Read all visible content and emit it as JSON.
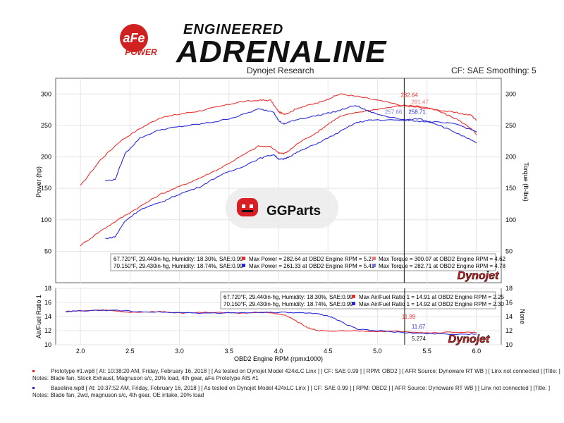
{
  "brand": {
    "afe_logo_text": "aFe",
    "afe_power_text": "POWER",
    "engineered": "ENGINEERED",
    "adrenaline": "ADRENALINE"
  },
  "header": {
    "left": "Dynojet Research",
    "right": "CF: SAE Smoothing: 5"
  },
  "watermark": {
    "text": "GGParts"
  },
  "colors": {
    "run1": "#e83030",
    "run2": "#2a2ad8",
    "run1_light": "#f07878",
    "run2_light": "#7878e8"
  },
  "chart_data": [
    {
      "type": "line",
      "xlabel": "",
      "ylabel": "Power (hp)",
      "y2label": "Torque (ft-lbs)",
      "xlim": [
        1.75,
        6.25
      ],
      "ylim": [
        0,
        325
      ],
      "y2lim": [
        0,
        325
      ],
      "yticks": [
        50,
        100,
        150,
        200,
        250,
        300
      ],
      "cursor_x": 5.27,
      "cursor_labels": {
        "power_red": "282.64",
        "torque_red": "281.47",
        "power_blue": "257.66",
        "torque_blue": "258.71"
      },
      "legend": [
        {
          "conditions": "67.720°F, 29.440in-hg, Humidity: 18.30%, SAE:0.99",
          "max1": "Max Power = 282.64 at OBD2 Engine RPM = 5.27",
          "max2": "Max Torque = 300.07 at OBD2 Engine RPM = 4.62"
        },
        {
          "conditions": "70.150°F, 29.430in-hg, Humidity: 18.74%, SAE:0.99",
          "max1": "Max Power = 261.33 at OBD2 Engine RPM = 5.42",
          "max2": "Max Torque = 282.71 at OBD2 Engine RPM = 4.78"
        }
      ],
      "series": [
        {
          "axis": "y2",
          "run": 1,
          "x": [
            2.0,
            2.2,
            2.4,
            2.6,
            2.8,
            3.0,
            3.2,
            3.4,
            3.6,
            3.8,
            3.92,
            4.0,
            4.05,
            4.1,
            4.2,
            4.4,
            4.5,
            4.62,
            4.8,
            5.0,
            5.27,
            5.4,
            5.6,
            5.8,
            5.95,
            6.0
          ],
          "values": [
            154,
            195,
            225,
            245,
            262,
            268,
            273,
            280,
            287,
            290,
            290,
            272,
            268,
            270,
            278,
            286,
            292,
            300,
            296,
            290,
            281,
            279,
            275,
            270,
            266,
            258
          ]
        },
        {
          "axis": "y",
          "run": 1,
          "x": [
            2.0,
            2.2,
            2.4,
            2.6,
            2.8,
            3.0,
            3.2,
            3.4,
            3.6,
            3.8,
            3.92,
            4.0,
            4.05,
            4.1,
            4.2,
            4.4,
            4.5,
            4.62,
            4.8,
            5.0,
            5.27,
            5.4,
            5.6,
            5.8,
            5.95,
            6.0
          ],
          "values": [
            59,
            82,
            102,
            121,
            140,
            153,
            166,
            181,
            199,
            217,
            216,
            207,
            205,
            209,
            222,
            240,
            252,
            264,
            271,
            276,
            282,
            281,
            274,
            260,
            245,
            235
          ]
        },
        {
          "axis": "y2",
          "run": 2,
          "x": [
            2.25,
            2.35,
            2.45,
            2.6,
            2.8,
            3.0,
            3.2,
            3.4,
            3.6,
            3.8,
            3.95,
            4.0,
            4.05,
            4.1,
            4.2,
            4.4,
            4.6,
            4.78,
            4.9,
            5.0,
            5.27,
            5.4,
            5.6,
            5.8,
            6.0
          ],
          "values": [
            162,
            164,
            205,
            230,
            243,
            248,
            252,
            257,
            265,
            276,
            272,
            258,
            252,
            255,
            260,
            266,
            273,
            282,
            273,
            268,
            259,
            257,
            255,
            252,
            240
          ]
        },
        {
          "axis": "y",
          "run": 2,
          "x": [
            2.25,
            2.35,
            2.45,
            2.6,
            2.8,
            3.0,
            3.2,
            3.4,
            3.6,
            3.8,
            3.95,
            4.0,
            4.05,
            4.1,
            4.2,
            4.4,
            4.6,
            4.78,
            4.9,
            5.0,
            5.27,
            5.42,
            5.6,
            5.8,
            6.0
          ],
          "values": [
            70,
            73,
            98,
            116,
            127,
            141,
            152,
            170,
            182,
            197,
            204,
            197,
            196,
            200,
            208,
            222,
            238,
            254,
            258,
            259,
            258,
            261,
            252,
            238,
            222
          ]
        }
      ]
    },
    {
      "type": "line",
      "xlabel": "OBD2 Engine RPM (rpmx1000)",
      "ylabel": "Air/Fuel Ratio 1",
      "y2label": "None",
      "xlim": [
        1.75,
        6.25
      ],
      "ylim": [
        10,
        18
      ],
      "y2lim": [
        10,
        18
      ],
      "yticks": [
        10,
        12,
        14,
        16,
        18
      ],
      "xticks": [
        2.0,
        2.5,
        3.0,
        3.5,
        4.0,
        4.5,
        5.0,
        5.5,
        6.0
      ],
      "cursor_x": 5.274,
      "cursor_labels": {
        "red": "11.89",
        "blue": "11.67",
        "x": "5.274"
      },
      "legend": [
        {
          "conditions": "67.720°F, 29.440in-hg, Humidity: 18.30%, SAE:0.99",
          "max1": "Max Air/Fuel Ratio 1 = 14.91 at OBD2 Engine RPM = 2.25"
        },
        {
          "conditions": "70.150°F, 29.430in-hg, Humidity: 18.74%, SAE:0.99",
          "max1": "Max Air/Fuel Ratio 1 = 14.92 at OBD2 Engine RPM = 2.30"
        }
      ],
      "series": [
        {
          "run": 1,
          "x": [
            1.85,
            2.0,
            2.25,
            2.5,
            2.8,
            3.0,
            3.3,
            3.6,
            3.9,
            4.0,
            4.1,
            4.2,
            4.3,
            4.4,
            4.5,
            4.7,
            5.0,
            5.27,
            5.5,
            5.8,
            6.0
          ],
          "values": [
            14.7,
            14.8,
            14.9,
            14.6,
            14.7,
            14.5,
            14.6,
            14.5,
            14.6,
            14.4,
            14.0,
            13.2,
            12.4,
            12.0,
            11.9,
            12.0,
            11.9,
            11.9,
            11.7,
            11.8,
            11.7
          ]
        },
        {
          "run": 2,
          "x": [
            1.85,
            2.0,
            2.3,
            2.6,
            2.9,
            3.2,
            3.5,
            3.8,
            4.0,
            4.2,
            4.4,
            4.5,
            4.6,
            4.7,
            4.8,
            5.0,
            5.27,
            5.5,
            5.8,
            6.0
          ],
          "values": [
            14.7,
            14.8,
            14.9,
            14.7,
            14.6,
            14.5,
            14.5,
            14.6,
            14.6,
            14.5,
            14.4,
            14.1,
            13.5,
            12.8,
            12.2,
            12.0,
            11.7,
            11.6,
            11.5,
            11.5
          ]
        }
      ]
    }
  ],
  "footer": {
    "run1_line1": "Prototype #1.wp8 [ At: 10:38:20 AM, Friday, February 16, 2018 ] [ As tested on Dynojet Model 424xLC Linx ] [ CF: SAE 0.99 ] [ RPM: OBD2 ] [ AFR Source: Dynoware RT WB ] [ Linx not connected ] [Title: ]",
    "run1_line2": "Notes: Blade fan, Stock Exhaust, Magnuson s/c, 20% load, 4th gear, aFe Prototype AIS #1",
    "run2_line1": "Baseline.wp8 [ At: 10:37:52 AM, Friday, February 16, 2018 ] [ As tested on Dynojet Model 424xLC Linx ] [ CF: SAE 0.99 ] [ RPM: OBD2 ] [ AFR Source: Dynoware RT WB ] [ Linx not connected ] [Title: ]",
    "run2_line2": "Notes: Blade fan, 2wd, magnuson s/c, 4th gear, OE intake, 20% load"
  },
  "dynojet_logo": "Dynojet"
}
